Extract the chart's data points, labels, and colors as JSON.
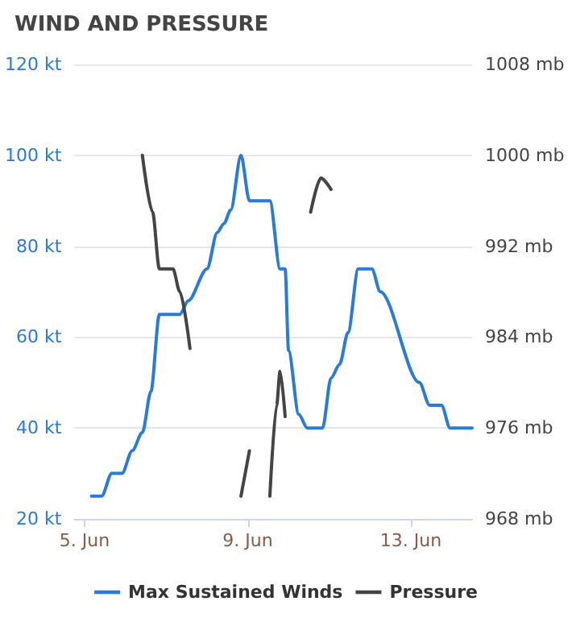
{
  "chart_data": {
    "type": "line",
    "title": "WIND AND PRESSURE",
    "xlim": [
      "--06-04T18:00",
      "--06-14T12:00"
    ],
    "xticks": [
      {
        "value": "--06-05",
        "label": "5. Jun"
      },
      {
        "value": "--06-09",
        "label": "9. Jun"
      },
      {
        "value": "--06-13",
        "label": "13. Jun"
      }
    ],
    "ylim": [
      20,
      120
    ],
    "yticks": [
      {
        "value": 20,
        "label": "20 kt"
      },
      {
        "value": 40,
        "label": "40 kt"
      },
      {
        "value": 60,
        "label": "60 kt"
      },
      {
        "value": 80,
        "label": "80 kt"
      },
      {
        "value": 100,
        "label": "100 kt"
      },
      {
        "value": 120,
        "label": "120 kt"
      }
    ],
    "y2lim": [
      968,
      1008
    ],
    "y2ticks": [
      {
        "value": 968,
        "label": "968 mb"
      },
      {
        "value": 976,
        "label": "976 mb"
      },
      {
        "value": 984,
        "label": "984 mb"
      },
      {
        "value": 992,
        "label": "992 mb"
      },
      {
        "value": 1000,
        "label": "1000 mb"
      },
      {
        "value": 1008,
        "label": "1008 mb"
      }
    ],
    "grid": "y",
    "legend": "bottom",
    "marker": "none",
    "line_style": "solid",
    "series": [
      {
        "name": "Max Sustained Winds",
        "color": "#2b7bd6",
        "x": [
          "--06-05T04:00",
          "--06-05T10:00",
          "--06-05T16:00",
          "--06-05T22:00",
          "--06-06T04:00",
          "--06-06T10:00",
          "--06-06T15:00",
          "--06-06T20:00",
          "--06-07T08:00",
          "--06-07T13:00",
          "--06-08T00:00",
          "--06-08T06:00",
          "--06-08T10:00",
          "--06-08T14:00",
          "--06-08T20:00",
          "--06-09T01:00",
          "--06-09T13:00",
          "--06-09T19:00",
          "--06-09T22:00",
          "--06-10T00:00",
          "--06-10T06:00",
          "--06-10T11:00",
          "--06-10T20:00",
          "--06-11T01:00",
          "--06-11T06:00",
          "--06-11T11:00",
          "--06-11T17:00",
          "--06-12T01:00",
          "--06-12T06:00",
          "--06-13T05:00",
          "--06-13T11:00",
          "--06-13T18:00",
          "--06-13T23:00",
          "--06-14T12:00"
        ],
        "values": [
          25,
          25,
          30,
          30,
          35,
          39,
          48,
          65,
          65,
          68,
          75,
          83,
          85,
          88,
          100,
          90,
          90,
          75,
          75,
          57,
          43,
          40,
          40,
          51,
          54,
          61,
          75,
          75,
          70,
          50,
          45,
          45,
          40,
          40
        ]
      },
      {
        "name": "Pressure",
        "color": "#444444",
        "axis": "y2",
        "x": [
          "--06-06T10:00",
          "--06-06T16:00",
          "--06-06T20:00",
          "--06-07T04:00",
          "--06-07T08:00",
          "--06-07T14:00",
          "--06-08T05:00",
          "--06-08T20:00",
          "--06-09T01:00",
          "--06-09T07:00",
          "--06-09T13:00",
          "--06-09T17:00",
          "--06-09T19:00",
          "--06-09T22:00",
          "--06-10T05:00",
          "--06-10T13:00",
          "--06-10T19:00",
          "--06-11T01:00"
        ],
        "values": [
          1000,
          995,
          990,
          990,
          988,
          983,
          null,
          970,
          974,
          null,
          970,
          978,
          981,
          977,
          null,
          995,
          998,
          997
        ]
      }
    ]
  }
}
